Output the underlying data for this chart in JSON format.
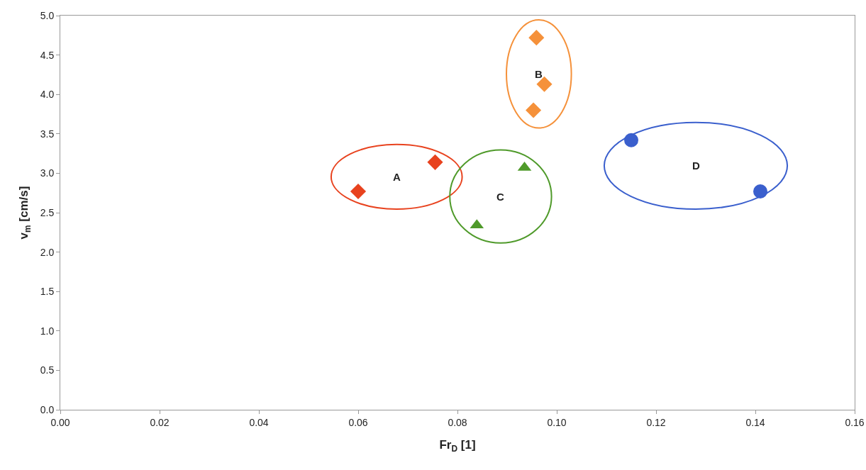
{
  "chart_data": {
    "type": "scatter",
    "xlabel": "Fr$_{D}$ [1]",
    "ylabel": "v$_{m}$ [cm/s]",
    "xlim": [
      0,
      0.16
    ],
    "ylim": [
      0,
      5
    ],
    "xticks": [
      {
        "value": 0,
        "label": "0.00"
      },
      {
        "value": 0.02,
        "label": "0.02"
      },
      {
        "value": 0.04,
        "label": "0.04"
      },
      {
        "value": 0.06,
        "label": "0.06"
      },
      {
        "value": 0.08,
        "label": "0.08"
      },
      {
        "value": 0.1,
        "label": "0.10"
      },
      {
        "value": 0.12,
        "label": "0.12"
      },
      {
        "value": 0.14,
        "label": "0.14"
      },
      {
        "value": 0.16,
        "label": "0.16"
      }
    ],
    "yticks": [
      {
        "value": 0,
        "label": "0.0"
      },
      {
        "value": 0.5,
        "label": "0.5"
      },
      {
        "value": 1,
        "label": "1.0"
      },
      {
        "value": 1.5,
        "label": "1.5"
      },
      {
        "value": 2,
        "label": "2.0"
      },
      {
        "value": 2.5,
        "label": "2.5"
      },
      {
        "value": 3,
        "label": "3.0"
      },
      {
        "value": 3.5,
        "label": "3.5"
      },
      {
        "value": 4,
        "label": "4.0"
      },
      {
        "value": 4.5,
        "label": "4.5"
      },
      {
        "value": 5,
        "label": "5.0"
      }
    ],
    "grid": false,
    "series": [
      {
        "color": "#e8421e",
        "marker": "diamond",
        "x": [
          0.06,
          0.0755
        ],
        "values": [
          2.77,
          3.14
        ]
      },
      {
        "color": "#f5913a",
        "marker": "diamond",
        "x": [
          0.0959,
          0.0975,
          0.0953
        ],
        "values": [
          4.72,
          4.13,
          3.8
        ]
      },
      {
        "color": "#4f9a2a",
        "marker": "triangle",
        "x": [
          0.0839,
          0.0935
        ],
        "values": [
          2.34,
          3.07
        ]
      },
      {
        "color": "#3a5fcd",
        "marker": "circle",
        "x": [
          0.115,
          0.141
        ],
        "values": [
          3.42,
          2.77
        ]
      }
    ],
    "annotations": [
      "A",
      "B",
      "C",
      "D"
    ]
  }
}
